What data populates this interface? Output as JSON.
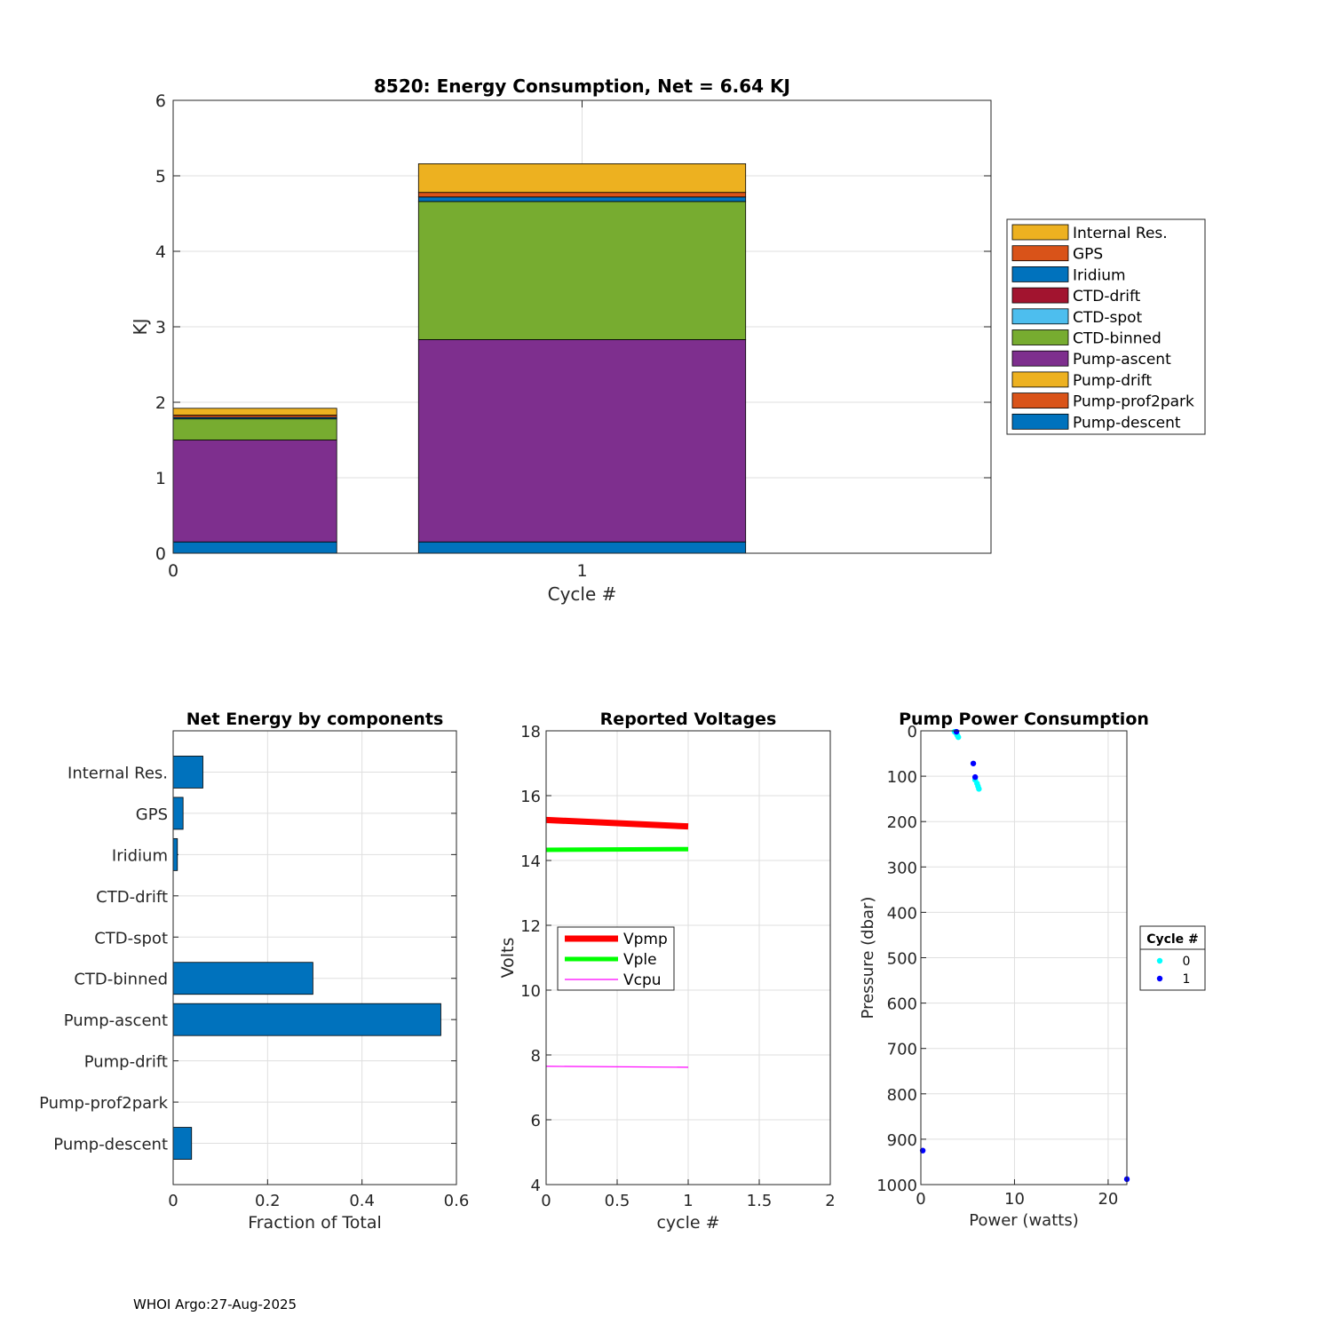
{
  "footer": "WHOI Argo:27-Aug-2025",
  "chart_data": [
    {
      "type": "bar",
      "stacked": true,
      "title": "8520: Energy Consumption,  Net =   6.64 KJ",
      "xlabel": "Cycle #",
      "ylabel": "KJ",
      "xlim": [
        0,
        2
      ],
      "ylim": [
        0,
        6
      ],
      "xticks": [
        0,
        1
      ],
      "yticks": [
        0,
        1,
        2,
        3,
        4,
        5,
        6
      ],
      "categories": [
        0,
        1
      ],
      "grid": true,
      "legend_position": "right",
      "series": [
        {
          "name": "Pump-descent",
          "color": "#0072BD",
          "values": [
            0.15,
            0.15
          ]
        },
        {
          "name": "Pump-prof2park",
          "color": "#D95319",
          "values": [
            0.0,
            0.0
          ]
        },
        {
          "name": "Pump-drift",
          "color": "#EDB120",
          "values": [
            0.0,
            0.0
          ]
        },
        {
          "name": "Pump-ascent",
          "color": "#7E2F8E",
          "values": [
            1.35,
            2.68
          ]
        },
        {
          "name": "CTD-binned",
          "color": "#77AC30",
          "values": [
            0.28,
            1.83
          ]
        },
        {
          "name": "CTD-spot",
          "color": "#4DBEEE",
          "values": [
            0.0,
            0.0
          ]
        },
        {
          "name": "CTD-drift",
          "color": "#A2142F",
          "values": [
            0.0,
            0.0
          ]
        },
        {
          "name": "Iridium",
          "color": "#0072BD",
          "values": [
            0.02,
            0.06
          ]
        },
        {
          "name": "GPS",
          "color": "#D95319",
          "values": [
            0.03,
            0.06
          ]
        },
        {
          "name": "Internal Res.",
          "color": "#EDB120",
          "values": [
            0.09,
            0.38
          ]
        }
      ],
      "legend_order": [
        "Internal Res.",
        "GPS",
        "Iridium",
        "CTD-drift",
        "CTD-spot",
        "CTD-binned",
        "Pump-ascent",
        "Pump-drift",
        "Pump-prof2park",
        "Pump-descent"
      ]
    },
    {
      "type": "bar",
      "orientation": "horizontal",
      "title": "Net Energy by components",
      "xlabel": "Fraction of Total",
      "ylabel": "",
      "xlim": [
        0,
        0.6
      ],
      "xticks": [
        0,
        0.2,
        0.4,
        0.6
      ],
      "color": "#0072BD",
      "grid": true,
      "categories": [
        "Internal Res.",
        "GPS",
        "Iridium",
        "CTD-drift",
        "CTD-spot",
        "CTD-binned",
        "Pump-ascent",
        "Pump-drift",
        "Pump-prof2park",
        "Pump-descent"
      ],
      "values": [
        0.063,
        0.021,
        0.009,
        0.0,
        0.0,
        0.296,
        0.567,
        0.0,
        0.0,
        0.039
      ]
    },
    {
      "type": "line",
      "title": "Reported Voltages",
      "xlabel": "cycle #",
      "ylabel": "Volts",
      "xlim": [
        0,
        2
      ],
      "ylim": [
        4,
        18
      ],
      "xticks": [
        0,
        0.5,
        1,
        1.5,
        2
      ],
      "yticks": [
        4,
        6,
        8,
        10,
        12,
        14,
        16,
        18
      ],
      "grid": true,
      "legend_position": "middle-left",
      "x": [
        0,
        1
      ],
      "series": [
        {
          "name": "Vpmp",
          "color": "#FF0000",
          "width": "thick",
          "values": [
            15.25,
            15.05
          ]
        },
        {
          "name": "Vple",
          "color": "#00FF00",
          "width": "medium",
          "values": [
            14.33,
            14.35
          ]
        },
        {
          "name": "Vcpu",
          "color": "#FF00FF",
          "width": "thin",
          "values": [
            7.65,
            7.62
          ]
        }
      ]
    },
    {
      "type": "scatter",
      "title": "Pump Power Consumption",
      "xlabel": "Power (watts)",
      "ylabel": "Pressure (dbar)",
      "xlim": [
        0,
        22
      ],
      "ylim": [
        1000,
        0
      ],
      "y_reversed": true,
      "xticks": [
        0,
        10,
        20
      ],
      "yticks": [
        0,
        100,
        200,
        300,
        400,
        500,
        600,
        700,
        800,
        900,
        1000
      ],
      "grid": true,
      "legend_title": "Cycle #",
      "legend_position": "right",
      "series": [
        {
          "name": "0",
          "color": "#00FFFF",
          "points": [
            [
              3.6,
              2
            ],
            [
              3.8,
              6
            ],
            [
              3.9,
              10
            ],
            [
              4.0,
              14
            ],
            [
              5.8,
              108
            ],
            [
              6.0,
              116
            ],
            [
              6.1,
              122
            ],
            [
              6.2,
              128
            ]
          ]
        },
        {
          "name": "1",
          "color": "#0000FF",
          "points": [
            [
              3.8,
              2
            ],
            [
              5.6,
              72
            ],
            [
              5.8,
              102
            ],
            [
              0.2,
              925
            ],
            [
              22.0,
              988
            ]
          ]
        }
      ]
    }
  ]
}
